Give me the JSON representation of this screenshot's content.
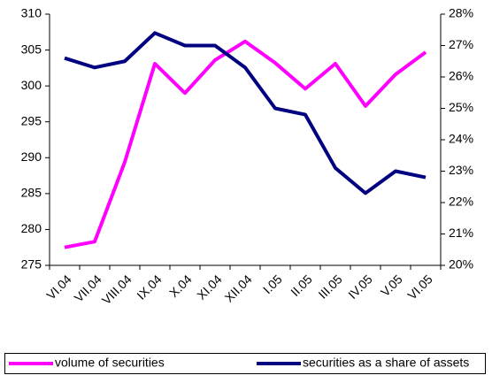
{
  "chart_data": {
    "type": "line",
    "categories": [
      "VI.04",
      "VII.04",
      "VIII.04",
      "IX.04",
      "X.04",
      "XI.04",
      "XII.04",
      "I.05",
      "II.05",
      "III.05",
      "IV.05",
      "V.05",
      "VI.05"
    ],
    "series": [
      {
        "name": "volume of securities",
        "color": "#ff00ff",
        "values": [
          277.5,
          278.3,
          289.4,
          303.1,
          299.0,
          303.6,
          306.2,
          303.2,
          299.6,
          303.1,
          297.2,
          301.6,
          304.7
        ]
      },
      {
        "name": "securities as a share of assets",
        "color": "#000080",
        "axis": "y2",
        "values": [
          26.6,
          26.3,
          26.5,
          27.4,
          27.0,
          27.0,
          26.3,
          25.0,
          24.8,
          23.1,
          22.3,
          23.0,
          22.8
        ]
      }
    ],
    "ylim": [
      275,
      310
    ],
    "yticks": [
      275,
      280,
      285,
      290,
      295,
      300,
      305,
      310
    ],
    "y2lim": [
      20,
      28
    ],
    "y2ticks": [
      {
        "value": 20,
        "label": "20%"
      },
      {
        "value": 21,
        "label": "21%"
      },
      {
        "value": 22,
        "label": "22%"
      },
      {
        "value": 23,
        "label": "23%"
      },
      {
        "value": 24,
        "label": "24%"
      },
      {
        "value": 25,
        "label": "25%"
      },
      {
        "value": 26,
        "label": "26%"
      },
      {
        "value": 27,
        "label": "27%"
      },
      {
        "value": 28,
        "label": "28%"
      }
    ],
    "grid": false,
    "legend": "bottom"
  }
}
